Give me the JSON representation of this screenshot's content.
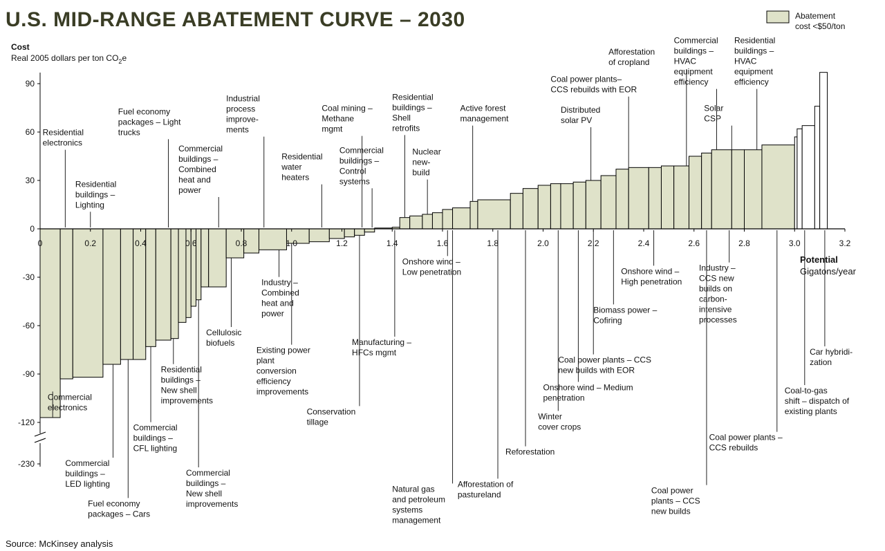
{
  "title": "U.S. MID-RANGE ABATEMENT CURVE – 2030",
  "source": "Source: McKinsey analysis",
  "colors": {
    "bar_fill": "#dfe2c9",
    "bar_stroke": "#000000",
    "title": "#3a3d25"
  },
  "chart_data": {
    "type": "bar",
    "title": "U.S. MID-RANGE ABATEMENT CURVE – 2030",
    "ylabel": "Cost",
    "ylabel_sub": "Real 2005 dollars per ton CO",
    "ylabel_sub_suffix": "2",
    "ylabel_sub_end": "e",
    "xlabel": "Potential",
    "xlabel_sub": "Gigatons/year",
    "x_ticks": [
      "0",
      "0.2",
      "0.4",
      "0.6",
      "0.8",
      "1.0",
      "1.2",
      "1.4",
      "1.6",
      "1.8",
      "2.0",
      "2.2",
      "2.4",
      "2.6",
      "2.8",
      "3.0",
      "3.2"
    ],
    "x_range": [
      0,
      3.2
    ],
    "y_ticks": [
      "90",
      "60",
      "30",
      "0",
      "-30",
      "-60",
      "-90",
      "-120",
      "-230"
    ],
    "y_range": [
      -130,
      100
    ],
    "y_break": true,
    "legend": {
      "label_line1": "Abatement",
      "label_line2": "cost <$50/ton",
      "position": "top-right"
    },
    "bars": [
      {
        "x": [
          0.0,
          0.08
        ],
        "y": -117
      },
      {
        "x": [
          0.08,
          0.13
        ],
        "y": -93
      },
      {
        "x": [
          0.13,
          0.25
        ],
        "y": -92
      },
      {
        "x": [
          0.25,
          0.32
        ],
        "y": -84
      },
      {
        "x": [
          0.32,
          0.37
        ],
        "y": -81
      },
      {
        "x": [
          0.37,
          0.42
        ],
        "y": -81
      },
      {
        "x": [
          0.42,
          0.46
        ],
        "y": -73
      },
      {
        "x": [
          0.46,
          0.52
        ],
        "y": -69
      },
      {
        "x": [
          0.52,
          0.55
        ],
        "y": -68
      },
      {
        "x": [
          0.55,
          0.58
        ],
        "y": -58
      },
      {
        "x": [
          0.58,
          0.6
        ],
        "y": -55
      },
      {
        "x": [
          0.6,
          0.62
        ],
        "y": -48
      },
      {
        "x": [
          0.62,
          0.64
        ],
        "y": -44
      },
      {
        "x": [
          0.64,
          0.67
        ],
        "y": -36
      },
      {
        "x": [
          0.67,
          0.74
        ],
        "y": -36
      },
      {
        "x": [
          0.74,
          0.81
        ],
        "y": -18
      },
      {
        "x": [
          0.81,
          0.87
        ],
        "y": -15
      },
      {
        "x": [
          0.87,
          0.98
        ],
        "y": -13
      },
      {
        "x": [
          0.98,
          1.07
        ],
        "y": -9
      },
      {
        "x": [
          1.07,
          1.15
        ],
        "y": -8
      },
      {
        "x": [
          1.15,
          1.21
        ],
        "y": -6
      },
      {
        "x": [
          1.21,
          1.25
        ],
        "y": -5
      },
      {
        "x": [
          1.25,
          1.29
        ],
        "y": -4
      },
      {
        "x": [
          1.29,
          1.33
        ],
        "y": -2
      },
      {
        "x": [
          1.33,
          1.4
        ],
        "y": 0.5
      },
      {
        "x": [
          1.4,
          1.43
        ],
        "y": 1
      },
      {
        "x": [
          1.43,
          1.47
        ],
        "y": 7
      },
      {
        "x": [
          1.47,
          1.52
        ],
        "y": 8
      },
      {
        "x": [
          1.52,
          1.56
        ],
        "y": 9
      },
      {
        "x": [
          1.56,
          1.6
        ],
        "y": 10
      },
      {
        "x": [
          1.6,
          1.64
        ],
        "y": 12
      },
      {
        "x": [
          1.64,
          1.71
        ],
        "y": 13
      },
      {
        "x": [
          1.71,
          1.74
        ],
        "y": 17
      },
      {
        "x": [
          1.74,
          1.87
        ],
        "y": 18
      },
      {
        "x": [
          1.87,
          1.92
        ],
        "y": 22
      },
      {
        "x": [
          1.92,
          1.98
        ],
        "y": 25
      },
      {
        "x": [
          1.98,
          2.03
        ],
        "y": 27
      },
      {
        "x": [
          2.03,
          2.07
        ],
        "y": 28
      },
      {
        "x": [
          2.07,
          2.12
        ],
        "y": 28
      },
      {
        "x": [
          2.12,
          2.17
        ],
        "y": 29
      },
      {
        "x": [
          2.17,
          2.23
        ],
        "y": 30
      },
      {
        "x": [
          2.23,
          2.29
        ],
        "y": 33
      },
      {
        "x": [
          2.29,
          2.34
        ],
        "y": 37
      },
      {
        "x": [
          2.34,
          2.42
        ],
        "y": 38
      },
      {
        "x": [
          2.42,
          2.47
        ],
        "y": 38
      },
      {
        "x": [
          2.47,
          2.52
        ],
        "y": 39
      },
      {
        "x": [
          2.52,
          2.58
        ],
        "y": 39
      },
      {
        "x": [
          2.58,
          2.63
        ],
        "y": 45
      },
      {
        "x": [
          2.63,
          2.67
        ],
        "y": 47
      },
      {
        "x": [
          2.67,
          2.75
        ],
        "y": 49
      },
      {
        "x": [
          2.75,
          2.8
        ],
        "y": 49
      },
      {
        "x": [
          2.8,
          2.87
        ],
        "y": 49
      },
      {
        "x": [
          2.87,
          3.0
        ],
        "y": 52
      }
    ],
    "bars_over_50": [
      {
        "x": [
          3.0,
          3.01
        ],
        "y": 57
      },
      {
        "x": [
          3.01,
          3.03
        ],
        "y": 62
      },
      {
        "x": [
          3.03,
          3.08
        ],
        "y": 64
      },
      {
        "x": [
          3.08,
          3.1
        ],
        "y": 76
      },
      {
        "x": [
          3.1,
          3.13
        ],
        "y": 97
      }
    ],
    "annotations": [
      {
        "lines": [
          "Residential",
          "electronics"
        ],
        "anchor_x": 0.1,
        "text_x": 0.01,
        "text_y": 58
      },
      {
        "lines": [
          "Residential",
          "buildings –",
          "Lighting"
        ],
        "anchor_x": 0.2,
        "text_x": 0.14,
        "text_y": 26
      },
      {
        "lines": [
          "Fuel economy",
          "packages – Light",
          "trucks"
        ],
        "anchor_x": 0.51,
        "text_x": 0.31,
        "text_y": 71
      },
      {
        "lines": [
          "Commercial",
          "buildings –",
          "Combined",
          "heat and",
          "power"
        ],
        "anchor_x": 0.71,
        "text_x": 0.55,
        "text_y": 48
      },
      {
        "lines": [
          "Industrial",
          "process",
          "improve-",
          "ments"
        ],
        "anchor_x": 0.89,
        "text_x": 0.74,
        "text_y": 79
      },
      {
        "lines": [
          "Residential",
          "water",
          "heaters"
        ],
        "anchor_x": 1.12,
        "text_x": 0.96,
        "text_y": 43
      },
      {
        "lines": [
          "Coal mining –",
          "Methane",
          "mgmt"
        ],
        "anchor_x": 1.28,
        "text_x": 1.12,
        "text_y": 73
      },
      {
        "lines": [
          "Commercial",
          "buildings –",
          "Control",
          "systems"
        ],
        "anchor_x": 1.32,
        "text_x": 1.19,
        "text_y": 47
      },
      {
        "lines": [
          "Residential",
          "buildings –",
          "Shell",
          "retrofits"
        ],
        "anchor_x": 1.45,
        "text_x": 1.4,
        "text_y": 80
      },
      {
        "lines": [
          "Nuclear",
          "new-",
          "build"
        ],
        "anchor_x": 1.54,
        "text_x": 1.48,
        "text_y": 46
      },
      {
        "lines": [
          "Active forest",
          "management"
        ],
        "anchor_x": 1.72,
        "text_x": 1.67,
        "text_y": 73
      },
      {
        "lines": [
          "Coal power plants–",
          "CCS rebuilds with EOR"
        ],
        "anchor_x": 2.34,
        "text_x": 2.03,
        "text_y": 91
      },
      {
        "lines": [
          "Afforestation",
          "of cropland"
        ],
        "anchor_x": 2.57,
        "text_x": 2.26,
        "text_y": 108
      },
      {
        "lines": [
          "Distributed",
          "solar PV"
        ],
        "anchor_x": 2.19,
        "text_x": 2.07,
        "text_y": 72
      },
      {
        "lines": [
          "Commercial",
          "buildings –",
          "HVAC",
          "equipment",
          "efficiency"
        ],
        "anchor_x": 2.69,
        "text_x": 2.52,
        "text_y": 115
      },
      {
        "lines": [
          "Solar",
          "CSP"
        ],
        "anchor_x": 2.75,
        "text_x": 2.64,
        "text_y": 73
      },
      {
        "lines": [
          "Residential",
          "buildings –",
          "HVAC",
          "equipment",
          "efficiency"
        ],
        "anchor_x": 2.85,
        "text_x": 2.76,
        "text_y": 115
      },
      {
        "lines": [
          "Onshore wind –",
          "Low penetration"
        ],
        "anchor_x": 1.62,
        "text_x": 1.44,
        "text_y": -22
      },
      {
        "lines": [
          "Industry –",
          "Combined",
          "heat and",
          "power"
        ],
        "anchor_x": 0.95,
        "text_x": 0.88,
        "text_y": -35
      },
      {
        "lines": [
          "Onshore wind –",
          "High penetration"
        ],
        "anchor_x": 2.44,
        "text_x": 2.31,
        "text_y": -28
      },
      {
        "lines": [
          "Industry –",
          "CCS new",
          "builds on",
          "carbon-",
          "intensive",
          "processes"
        ],
        "anchor_x": 2.74,
        "text_x": 2.62,
        "text_y": -26
      },
      {
        "lines": [
          "Biomass  power –",
          "Cofiring"
        ],
        "anchor_x": 2.28,
        "text_x": 2.2,
        "text_y": -52
      },
      {
        "lines": [
          "Cellulosic",
          "biofuels"
        ],
        "anchor_x": 0.76,
        "text_x": 0.66,
        "text_y": -66
      },
      {
        "lines": [
          "Manufacturing –",
          "HFCs mgmt"
        ],
        "anchor_x": 1.41,
        "text_x": 1.24,
        "text_y": -72
      },
      {
        "lines": [
          "Existing power",
          "plant",
          "conversion",
          "efficiency",
          "improvements"
        ],
        "anchor_x": 1.0,
        "text_x": 0.86,
        "text_y": -77
      },
      {
        "lines": [
          "Coal power plants – CCS",
          "new builds with EOR"
        ],
        "anchor_x": 2.2,
        "text_x": 2.06,
        "text_y": -83
      },
      {
        "lines": [
          "Residential",
          "buildings –",
          "New shell",
          "improvements"
        ],
        "anchor_x": 0.53,
        "text_x": 0.48,
        "text_y": -89
      },
      {
        "lines": [
          "Car hybridi-",
          "zation"
        ],
        "anchor_x": 3.12,
        "text_x": 3.06,
        "text_y": -78
      },
      {
        "lines": [
          "Onshore wind – Medium",
          "penetration"
        ],
        "anchor_x": 2.14,
        "text_x": 2.0,
        "text_y": -100
      },
      {
        "lines": [
          "Commercial",
          "electronics"
        ],
        "anchor_x": 0.05,
        "text_x": 0.03,
        "text_y": -106
      },
      {
        "lines": [
          "Coal-to-gas",
          "shift – dispatch of",
          "existing plants"
        ],
        "anchor_x": 3.04,
        "text_x": 2.96,
        "text_y": -102
      },
      {
        "lines": [
          "Conservation",
          "tillage"
        ],
        "anchor_x": 1.27,
        "text_x": 1.06,
        "text_y": -115
      },
      {
        "lines": [
          "Winter",
          "cover crops"
        ],
        "anchor_x": 2.06,
        "text_x": 1.98,
        "text_y": -118
      },
      {
        "lines": [
          "Commercial",
          "buildings –",
          "CFL lighting"
        ],
        "anchor_x": 0.44,
        "text_x": 0.37,
        "text_y": -125
      },
      {
        "lines": [
          "Coal power plants –",
          "CCS rebuilds"
        ],
        "anchor_x": 2.93,
        "text_x": 2.66,
        "text_y": -131
      },
      {
        "lines": [
          "Reforestation"
        ],
        "anchor_x": 1.93,
        "text_x": 1.85,
        "text_y": -140
      },
      {
        "lines": [
          "Commercial",
          "buildings –",
          "LED lighting"
        ],
        "anchor_x": 0.29,
        "text_x": 0.1,
        "text_y": -147
      },
      {
        "lines": [
          "Commercial",
          "buildings –",
          "New shell",
          "improvements"
        ],
        "anchor_x": 0.63,
        "text_x": 0.58,
        "text_y": -153
      },
      {
        "lines": [
          "Afforestation of",
          "pastureland"
        ],
        "anchor_x": 1.82,
        "text_x": 1.66,
        "text_y": -160
      },
      {
        "lines": [
          "Natural gas",
          "and petroleum",
          "systems",
          "management"
        ],
        "anchor_x": 1.64,
        "text_x": 1.4,
        "text_y": -163
      },
      {
        "lines": [
          "Coal power",
          "plants – CCS",
          "new builds"
        ],
        "anchor_x": 2.65,
        "text_x": 2.43,
        "text_y": -164
      },
      {
        "lines": [
          "Fuel economy",
          "packages – Cars"
        ],
        "anchor_x": 0.35,
        "text_x": 0.19,
        "text_y": -172
      }
    ]
  }
}
